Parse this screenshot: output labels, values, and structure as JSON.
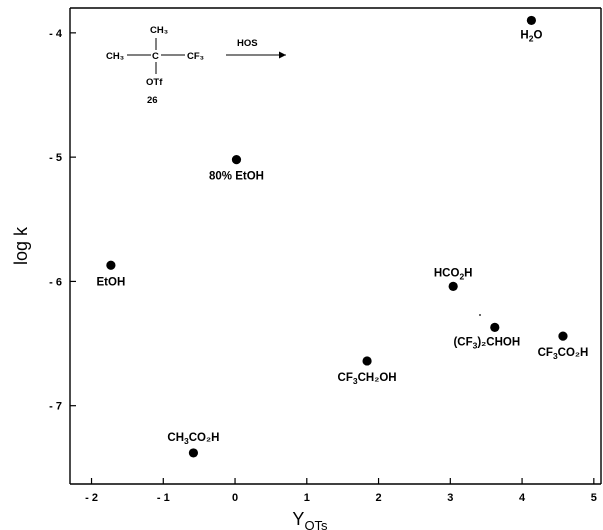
{
  "chart_data": {
    "type": "scatter",
    "xlabel": "Y",
    "xlabel_sub": "OTs",
    "ylabel": "log k",
    "xlim": [
      -2.3,
      5.1
    ],
    "ylim": [
      -7.63,
      -3.8
    ],
    "xticks": [
      -2,
      -1,
      0,
      1,
      2,
      3,
      4,
      5
    ],
    "xtick_labels": [
      "- 2",
      "- 1",
      "0",
      "1",
      "2",
      "3",
      "4",
      "5"
    ],
    "yticks": [
      -4,
      -5,
      -6,
      -7
    ],
    "ytick_labels": [
      "- 4",
      "- 5",
      "- 6",
      "- 7"
    ],
    "grid": false,
    "points": [
      {
        "x": 4.13,
        "y": -3.9,
        "label": "H",
        "sub": "2",
        "tail": "O"
      },
      {
        "x": 0.02,
        "y": -5.02,
        "label": "80% EtOH"
      },
      {
        "x": -1.73,
        "y": -5.87,
        "label": "EtOH"
      },
      {
        "x": 3.04,
        "y": -6.04,
        "label": "HCO",
        "sub": "2",
        "tail": "H"
      },
      {
        "x": 3.62,
        "y": -6.37,
        "label": "(CF",
        "sub": "3",
        "tail": ")₂CHOH"
      },
      {
        "x": 4.57,
        "y": -6.44,
        "label": "CF",
        "sub": "3",
        "tail": "CO₂H"
      },
      {
        "x": 1.84,
        "y": -6.64,
        "label": "CF",
        "sub": "3",
        "tail": "CH₂OH"
      },
      {
        "x": -0.58,
        "y": -7.38,
        "label": "CH",
        "sub": "3",
        "tail": "CO₂H"
      }
    ]
  },
  "scheme": {
    "ch3_top": "CH₃",
    "ch3_left": "CH₃",
    "center": "C",
    "cf3": "CF₃",
    "otf": "OTf",
    "compound_number": "26",
    "arrow_label": "HOS"
  }
}
